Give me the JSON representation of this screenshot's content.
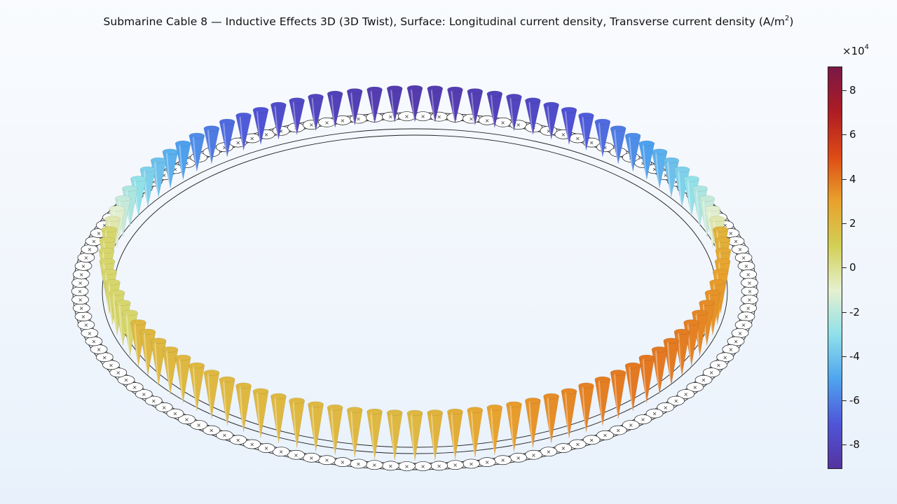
{
  "plot": {
    "title_main": "Submarine Cable 8 — Inductive Effects 3D (3D Twist), Surface: Longitudinal current density, Transverse current density (A/m",
    "title_sup": "2",
    "title_end": ")"
  },
  "colorbar": {
    "multiplier_base": "×10",
    "multiplier_exp": "4",
    "ticks": [
      "8",
      "6",
      "4",
      "2",
      "0",
      "-2",
      "-4",
      "-6",
      "-8"
    ],
    "colors": [
      "#7a1846",
      "#ad1c24",
      "#dd4a16",
      "#e8a12c",
      "#d3cf55",
      "#e5f0cf",
      "#8fe0ea",
      "#4ea4ee",
      "#4f55d8",
      "#5533a0"
    ]
  },
  "scene": {
    "element_count": 96,
    "ring_colors": {
      "wire": "#1f1f1f",
      "fill": "#ffffff"
    }
  }
}
